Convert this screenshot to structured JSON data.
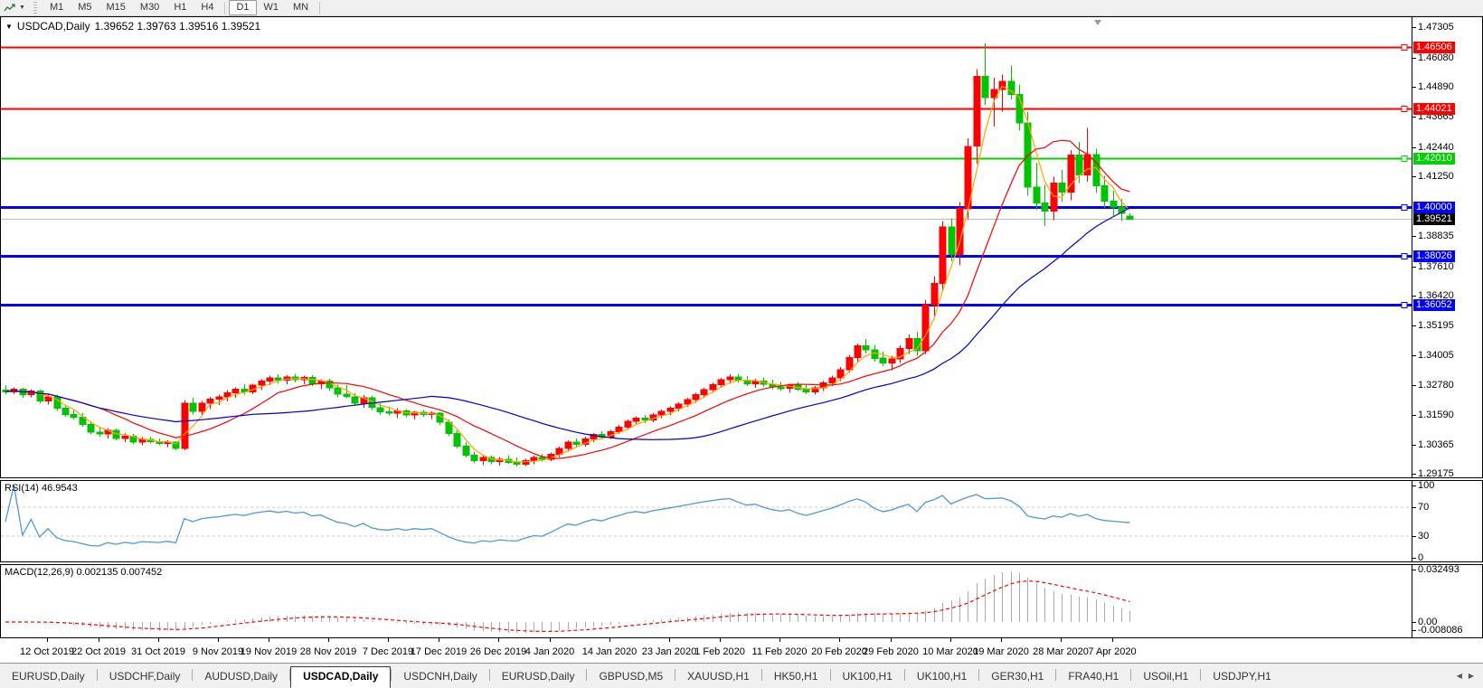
{
  "toolbar": {
    "periods": [
      "M1",
      "M5",
      "M15",
      "M30",
      "H1",
      "H4",
      "D1",
      "W1",
      "MN"
    ],
    "active_period": "D1"
  },
  "chart": {
    "title": "USDCAD,Daily",
    "ohlc_text": "1.39652 1.39763 1.39516 1.39521"
  },
  "price_axis": {
    "ticks": [
      {
        "text": "1.47305",
        "v": 1.47305
      },
      {
        "text": "1.46080",
        "v": 1.4608
      },
      {
        "text": "1.44890",
        "v": 1.4489
      },
      {
        "text": "1.43665",
        "v": 1.43665
      },
      {
        "text": "1.42440",
        "v": 1.4244
      },
      {
        "text": "1.41250",
        "v": 1.4125
      },
      {
        "text": "1.38835",
        "v": 1.38835
      },
      {
        "text": "1.37610",
        "v": 1.3761
      },
      {
        "text": "1.36420",
        "v": 1.3642
      },
      {
        "text": "1.35195",
        "v": 1.35195
      },
      {
        "text": "1.34005",
        "v": 1.34005
      },
      {
        "text": "1.32780",
        "v": 1.3278
      },
      {
        "text": "1.31590",
        "v": 1.3159
      },
      {
        "text": "1.30365",
        "v": 1.30365
      },
      {
        "text": "1.29175",
        "v": 1.29175
      }
    ],
    "line_labels": [
      {
        "text": "1.46506",
        "v": 1.46506,
        "color": "#ff0000"
      },
      {
        "text": "1.44021",
        "v": 1.44021,
        "color": "#ff0000"
      },
      {
        "text": "1.42010",
        "v": 1.4201,
        "color": "#00d200"
      },
      {
        "text": "1.40000",
        "v": 1.4,
        "color": "#0000ff"
      },
      {
        "text": "1.38026",
        "v": 1.38026,
        "color": "#0000ff"
      },
      {
        "text": "1.36052",
        "v": 1.36052,
        "color": "#0000ff"
      }
    ],
    "current": {
      "text": "1.39521",
      "v": 1.39521,
      "box_color": "#000000"
    }
  },
  "rsi": {
    "label": "RSI(14) 46.9543",
    "ticks": [
      {
        "text": "100",
        "v": 100
      },
      {
        "text": "70",
        "v": 70
      },
      {
        "text": "30",
        "v": 30
      },
      {
        "text": "0",
        "v": 0
      }
    ],
    "dashed_levels": [
      70,
      30
    ]
  },
  "macd": {
    "label": "MACD(12,26,9) 0.002135 0.007452",
    "ticks": [
      {
        "text": "0.032493",
        "v": 0.032493
      },
      {
        "text": "0.00",
        "v": 0
      },
      {
        "text": "-0.008086",
        "v": -0.008086
      }
    ]
  },
  "time_axis": {
    "labels": [
      {
        "text": "12 Oct 2019",
        "i": 5
      },
      {
        "text": "22 Oct 2019",
        "i": 11
      },
      {
        "text": "31 Oct 2019",
        "i": 18
      },
      {
        "text": "9 Nov 2019",
        "i": 25
      },
      {
        "text": "19 Nov 2019",
        "i": 31
      },
      {
        "text": "28 Nov 2019",
        "i": 38
      },
      {
        "text": "7 Dec 2019",
        "i": 45
      },
      {
        "text": "17 Dec 2019",
        "i": 51
      },
      {
        "text": "26 Dec 2019",
        "i": 58
      },
      {
        "text": "4 Jan 2020",
        "i": 64
      },
      {
        "text": "14 Jan 2020",
        "i": 71
      },
      {
        "text": "23 Jan 2020",
        "i": 78
      },
      {
        "text": "1 Feb 2020",
        "i": 84
      },
      {
        "text": "11 Feb 2020",
        "i": 91
      },
      {
        "text": "20 Feb 2020",
        "i": 98
      },
      {
        "text": "29 Feb 2020",
        "i": 104
      },
      {
        "text": "10 Mar 2020",
        "i": 111
      },
      {
        "text": "19 Mar 2020",
        "i": 117
      },
      {
        "text": "28 Mar 2020",
        "i": 124
      },
      {
        "text": "7 Apr 2020",
        "i": 130
      }
    ]
  },
  "tabs": {
    "items": [
      "EURUSD,Daily",
      "USDCHF,Daily",
      "AUDUSD,Daily",
      "USDCAD,Daily",
      "USDCNH,Daily",
      "EURUSD,Daily",
      "GBPUSD,M5",
      "XAUUSD,H1",
      "HK50,H1",
      "UK100,H1",
      "UK100,H1",
      "GER30,H1",
      "FRA40,H1",
      "USOil,H1",
      "USDJPY,H1"
    ],
    "active_index": 3,
    "nav_left": "◀",
    "nav_right": "▶"
  },
  "colors": {
    "bull": "#ff0000",
    "bear": "#00c400",
    "ma_fast": "#ffa500",
    "ma_mid": "#ff0000",
    "ma_slow": "#0000cc",
    "current_line": "#b8b8b8",
    "rsi_line": "#5098d5",
    "rsi_dash": "#c8c8c8",
    "macd_hist": "#a8a8a8",
    "macd_signal": "#ff0000"
  },
  "chart_data": {
    "type": "candlestick",
    "symbol": "USDCAD",
    "timeframe": "Daily",
    "open": 1.39652,
    "high": 1.39763,
    "low": 1.39516,
    "close": 1.39521,
    "price_range_visible": [
      1.2908,
      1.4768
    ],
    "horizontal_levels": [
      {
        "value": 1.46506,
        "color": "#ff0000"
      },
      {
        "value": 1.44021,
        "color": "#ff0000"
      },
      {
        "value": 1.4201,
        "color": "#00d200"
      },
      {
        "value": 1.4,
        "color": "#0000ff"
      },
      {
        "value": 1.38026,
        "color": "#0000ff"
      },
      {
        "value": 1.36052,
        "color": "#0000ff"
      }
    ],
    "current_price": 1.39521,
    "moving_averages": [
      {
        "name": "fast",
        "period": 4,
        "color": "#ffa500"
      },
      {
        "name": "medium",
        "period": 12,
        "color": "#ff0000"
      },
      {
        "name": "slow",
        "period": 30,
        "color": "#0000cc"
      }
    ],
    "indicators": [
      {
        "name": "RSI",
        "period": 14,
        "value": 46.9543,
        "levels": [
          70,
          30
        ]
      },
      {
        "name": "MACD",
        "fast": 12,
        "slow": 26,
        "signal": 9,
        "values": [
          0.002135,
          0.007452
        ]
      }
    ],
    "ohlc": [
      [
        1.3258,
        1.3278,
        1.324,
        1.3252
      ],
      [
        1.3252,
        1.327,
        1.3242,
        1.3262
      ],
      [
        1.3262,
        1.3268,
        1.3228,
        1.324
      ],
      [
        1.324,
        1.3262,
        1.323,
        1.3255
      ],
      [
        1.3255,
        1.326,
        1.3205,
        1.3215
      ],
      [
        1.3215,
        1.3242,
        1.32,
        1.3232
      ],
      [
        1.3232,
        1.324,
        1.3175,
        1.3185
      ],
      [
        1.3185,
        1.3198,
        1.315,
        1.316
      ],
      [
        1.316,
        1.3178,
        1.314,
        1.3148
      ],
      [
        1.3148,
        1.3165,
        1.311,
        1.312
      ],
      [
        1.312,
        1.3132,
        1.3078,
        1.3088
      ],
      [
        1.3088,
        1.311,
        1.307,
        1.308
      ],
      [
        1.308,
        1.3105,
        1.3062,
        1.3095
      ],
      [
        1.3095,
        1.3102,
        1.3055,
        1.3062
      ],
      [
        1.3062,
        1.3085,
        1.3048,
        1.3072
      ],
      [
        1.3072,
        1.308,
        1.304,
        1.3048
      ],
      [
        1.3048,
        1.3068,
        1.3035,
        1.3058
      ],
      [
        1.3058,
        1.307,
        1.3042,
        1.305
      ],
      [
        1.305,
        1.3062,
        1.3035,
        1.3042
      ],
      [
        1.3042,
        1.3055,
        1.3028,
        1.3048
      ],
      [
        1.3048,
        1.3052,
        1.3015,
        1.3022
      ],
      [
        1.3022,
        1.3218,
        1.3015,
        1.3205
      ],
      [
        1.3205,
        1.3228,
        1.316,
        1.3172
      ],
      [
        1.3172,
        1.3215,
        1.3155,
        1.3205
      ],
      [
        1.3205,
        1.3232,
        1.3182,
        1.3222
      ],
      [
        1.3222,
        1.324,
        1.3198,
        1.3232
      ],
      [
        1.3232,
        1.3258,
        1.3212,
        1.3248
      ],
      [
        1.3248,
        1.327,
        1.3228,
        1.3262
      ],
      [
        1.3262,
        1.3282,
        1.324,
        1.3252
      ],
      [
        1.3252,
        1.3285,
        1.3242,
        1.3278
      ],
      [
        1.3278,
        1.3302,
        1.3258,
        1.3295
      ],
      [
        1.3295,
        1.3318,
        1.3278,
        1.3308
      ],
      [
        1.3308,
        1.3322,
        1.3285,
        1.3298
      ],
      [
        1.3298,
        1.332,
        1.3282,
        1.3312
      ],
      [
        1.3312,
        1.3325,
        1.329,
        1.33
      ],
      [
        1.33,
        1.3318,
        1.3282,
        1.331
      ],
      [
        1.331,
        1.332,
        1.3275,
        1.3285
      ],
      [
        1.3285,
        1.3302,
        1.3262,
        1.3295
      ],
      [
        1.3295,
        1.3305,
        1.3255,
        1.3268
      ],
      [
        1.3268,
        1.328,
        1.323,
        1.3242
      ],
      [
        1.3242,
        1.3278,
        1.3225,
        1.3232
      ],
      [
        1.3232,
        1.3245,
        1.3195,
        1.3205
      ],
      [
        1.3205,
        1.3238,
        1.3188,
        1.3228
      ],
      [
        1.3228,
        1.3235,
        1.3178,
        1.3188
      ],
      [
        1.3188,
        1.3205,
        1.3158,
        1.317
      ],
      [
        1.317,
        1.3192,
        1.3155,
        1.3165
      ],
      [
        1.3165,
        1.3185,
        1.3145,
        1.3175
      ],
      [
        1.3175,
        1.3182,
        1.3148,
        1.3158
      ],
      [
        1.3158,
        1.3175,
        1.314,
        1.3168
      ],
      [
        1.3168,
        1.3178,
        1.315,
        1.316
      ],
      [
        1.316,
        1.3172,
        1.3142,
        1.3165
      ],
      [
        1.3165,
        1.317,
        1.3118,
        1.3128
      ],
      [
        1.3128,
        1.314,
        1.3072,
        1.3082
      ],
      [
        1.3082,
        1.3095,
        1.3022,
        1.3032
      ],
      [
        1.3032,
        1.3048,
        1.2985,
        1.2995
      ],
      [
        1.2995,
        1.301,
        1.2962,
        1.2972
      ],
      [
        1.2972,
        1.2995,
        1.2955,
        1.2985
      ],
      [
        1.2985,
        1.2992,
        1.2958,
        1.2968
      ],
      [
        1.2968,
        1.2988,
        1.2952,
        1.2978
      ],
      [
        1.2978,
        1.2995,
        1.296,
        1.2965
      ],
      [
        1.2965,
        1.2985,
        1.2948,
        1.2958
      ],
      [
        1.2958,
        1.298,
        1.295,
        1.2972
      ],
      [
        1.2972,
        1.2992,
        1.2958,
        1.2985
      ],
      [
        1.2985,
        1.3,
        1.2968,
        1.2978
      ],
      [
        1.2978,
        1.3005,
        1.297,
        1.2998
      ],
      [
        1.2998,
        1.303,
        1.2988,
        1.3022
      ],
      [
        1.3022,
        1.3055,
        1.301,
        1.3048
      ],
      [
        1.3048,
        1.3062,
        1.3028,
        1.3038
      ],
      [
        1.3038,
        1.307,
        1.303,
        1.306
      ],
      [
        1.306,
        1.3085,
        1.3048,
        1.3078
      ],
      [
        1.3078,
        1.3092,
        1.3058,
        1.3068
      ],
      [
        1.3068,
        1.3098,
        1.306,
        1.309
      ],
      [
        1.309,
        1.3118,
        1.308,
        1.3108
      ],
      [
        1.3108,
        1.314,
        1.3098,
        1.3132
      ],
      [
        1.3132,
        1.3152,
        1.3118,
        1.3145
      ],
      [
        1.3145,
        1.3158,
        1.3125,
        1.3138
      ],
      [
        1.3138,
        1.3165,
        1.3128,
        1.3158
      ],
      [
        1.3158,
        1.318,
        1.3145,
        1.3172
      ],
      [
        1.3172,
        1.3192,
        1.3158,
        1.3185
      ],
      [
        1.3185,
        1.321,
        1.3172,
        1.3202
      ],
      [
        1.3202,
        1.3228,
        1.319,
        1.322
      ],
      [
        1.322,
        1.3248,
        1.3208,
        1.324
      ],
      [
        1.324,
        1.3268,
        1.3228,
        1.326
      ],
      [
        1.326,
        1.3288,
        1.3248,
        1.328
      ],
      [
        1.328,
        1.3308,
        1.3268,
        1.33
      ],
      [
        1.33,
        1.3322,
        1.3285,
        1.3312
      ],
      [
        1.3312,
        1.3325,
        1.3288,
        1.3298
      ],
      [
        1.3298,
        1.3315,
        1.3275,
        1.3285
      ],
      [
        1.3285,
        1.3305,
        1.3268,
        1.3295
      ],
      [
        1.3295,
        1.331,
        1.3272,
        1.3282
      ],
      [
        1.3282,
        1.33,
        1.3262,
        1.3272
      ],
      [
        1.3272,
        1.3292,
        1.3255,
        1.3265
      ],
      [
        1.3265,
        1.3285,
        1.3248,
        1.3278
      ],
      [
        1.3278,
        1.3292,
        1.3255,
        1.3262
      ],
      [
        1.3262,
        1.328,
        1.3242,
        1.3252
      ],
      [
        1.3252,
        1.3275,
        1.324,
        1.3268
      ],
      [
        1.3268,
        1.3295,
        1.3255,
        1.3288
      ],
      [
        1.3288,
        1.3318,
        1.3275,
        1.3308
      ],
      [
        1.3308,
        1.3352,
        1.3295,
        1.3342
      ],
      [
        1.3342,
        1.3402,
        1.333,
        1.339
      ],
      [
        1.339,
        1.3448,
        1.3375,
        1.3438
      ],
      [
        1.3438,
        1.3465,
        1.3408,
        1.3422
      ],
      [
        1.3422,
        1.3442,
        1.3375,
        1.3388
      ],
      [
        1.3388,
        1.3415,
        1.3355,
        1.3368
      ],
      [
        1.3368,
        1.3398,
        1.334,
        1.3385
      ],
      [
        1.3385,
        1.344,
        1.3368,
        1.3428
      ],
      [
        1.3428,
        1.3485,
        1.3405,
        1.3468
      ],
      [
        1.3468,
        1.3495,
        1.3398,
        1.3418
      ],
      [
        1.3418,
        1.3625,
        1.3405,
        1.3605
      ],
      [
        1.3605,
        1.372,
        1.3548,
        1.3692
      ],
      [
        1.3692,
        1.3945,
        1.3658,
        1.392
      ],
      [
        1.392,
        1.3955,
        1.3782,
        1.3808
      ],
      [
        1.3808,
        1.4022,
        1.3765,
        1.3995
      ],
      [
        1.3995,
        1.428,
        1.3952,
        1.4248
      ],
      [
        1.4248,
        1.456,
        1.4178,
        1.4532
      ],
      [
        1.4532,
        1.4668,
        1.4415,
        1.4445
      ],
      [
        1.4445,
        1.4525,
        1.4328,
        1.4478
      ],
      [
        1.4478,
        1.4538,
        1.4388,
        1.4512
      ],
      [
        1.4512,
        1.4575,
        1.4438,
        1.4458
      ],
      [
        1.4458,
        1.4498,
        1.4312,
        1.4342
      ],
      [
        1.4342,
        1.4388,
        1.4048,
        1.4082
      ],
      [
        1.4082,
        1.4182,
        1.3988,
        1.4018
      ],
      [
        1.4018,
        1.4092,
        1.3925,
        1.3985
      ],
      [
        1.3985,
        1.4125,
        1.3948,
        1.4098
      ],
      [
        1.4098,
        1.4152,
        1.4022,
        1.4062
      ],
      [
        1.4062,
        1.4232,
        1.4028,
        1.4212
      ],
      [
        1.4212,
        1.4265,
        1.4098,
        1.4132
      ],
      [
        1.4132,
        1.4322,
        1.4105,
        1.4215
      ],
      [
        1.4215,
        1.4238,
        1.4058,
        1.4088
      ],
      [
        1.4088,
        1.4128,
        1.3998,
        1.4025
      ],
      [
        1.4025,
        1.4068,
        1.3965,
        1.4002
      ],
      [
        1.4002,
        1.4035,
        1.3945,
        1.3975
      ],
      [
        1.39652,
        1.39763,
        1.39516,
        1.39521
      ]
    ]
  }
}
